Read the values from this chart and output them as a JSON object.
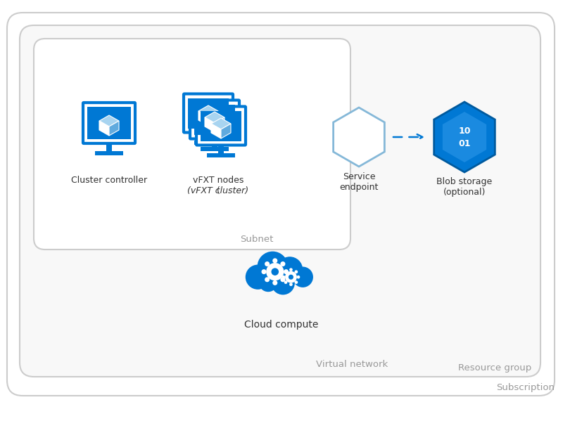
{
  "bg_color": "#ffffff",
  "border_color_light": "#cccccc",
  "border_color_mid": "#bbbbbb",
  "label_color": "#999999",
  "blue": "#0078d4",
  "blue_light": "#5ba7d4",
  "subscription_label": "Subscription",
  "resource_group_label": "Resource group",
  "vnet_label": "Virtual network",
  "subnet_label": "Subnet",
  "cluster_controller_label": "Cluster controller",
  "vfxt_nodes_label1": "vFXT nodes",
  "vfxt_nodes_label2": "(",
  "vfxt_nodes_italic": "vFXT cluster",
  "vfxt_nodes_label3": ")",
  "service_endpoint_label1": "Service",
  "service_endpoint_label2": "endpoint",
  "blob_storage_label1": "Blob storage",
  "blob_storage_label2": "(optional)",
  "cloud_compute_label": "Cloud compute",
  "fig_w": 8.0,
  "fig_h": 5.99
}
